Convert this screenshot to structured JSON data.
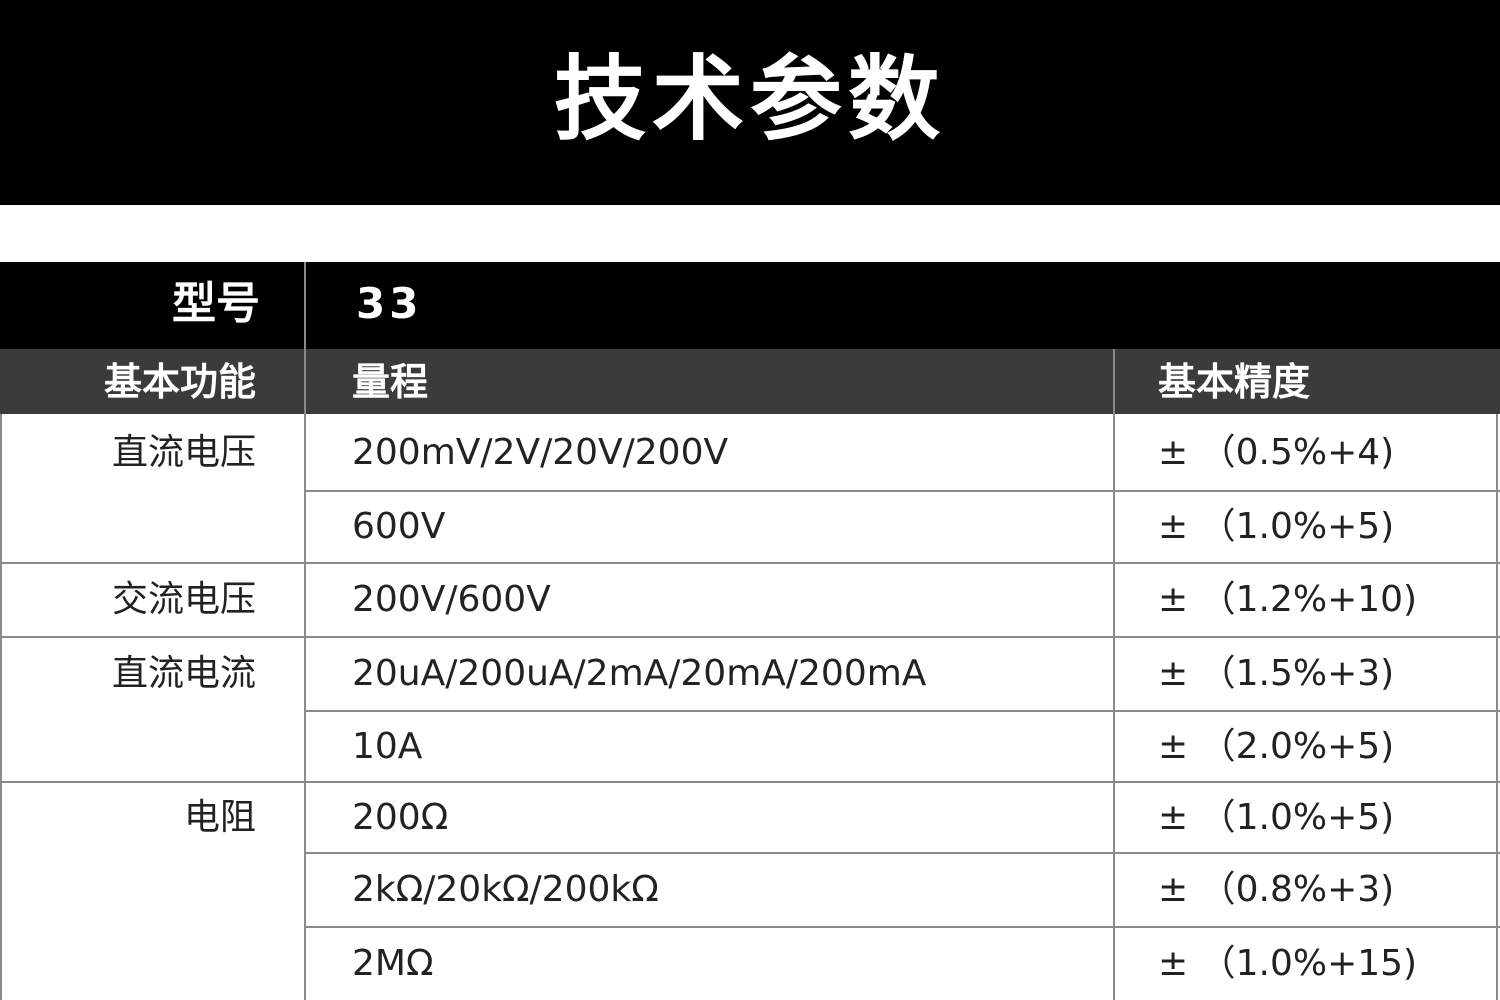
{
  "header": {
    "title": "技术参数"
  },
  "table": {
    "model_label": "型号",
    "model": "33",
    "columns": [
      "基本功能",
      "量程",
      "基本精度"
    ],
    "groups": [
      {
        "function": "直流电压",
        "rows": [
          {
            "range": "200mV/2V/20V/200V",
            "accuracy": "± （0.5%+4)"
          },
          {
            "range": "600V",
            "accuracy": "± （1.0%+5)"
          }
        ]
      },
      {
        "function": "交流电压",
        "rows": [
          {
            "range": "200V/600V",
            "accuracy": "± （1.2%+10)"
          }
        ]
      },
      {
        "function": "直流电流",
        "rows": [
          {
            "range": "20uA/200uA/2mA/20mA/200mA",
            "accuracy": "± （1.5%+3)"
          },
          {
            "range": "10A",
            "accuracy": "± （2.0%+5)"
          }
        ]
      },
      {
        "function": "电阻",
        "rows": [
          {
            "range": "200Ω",
            "accuracy": "± （1.0%+5)"
          },
          {
            "range": "2kΩ/20kΩ/200kΩ",
            "accuracy": "± （0.8%+3)"
          },
          {
            "range": "2MΩ",
            "accuracy": "± （1.0%+15)"
          }
        ]
      }
    ]
  }
}
